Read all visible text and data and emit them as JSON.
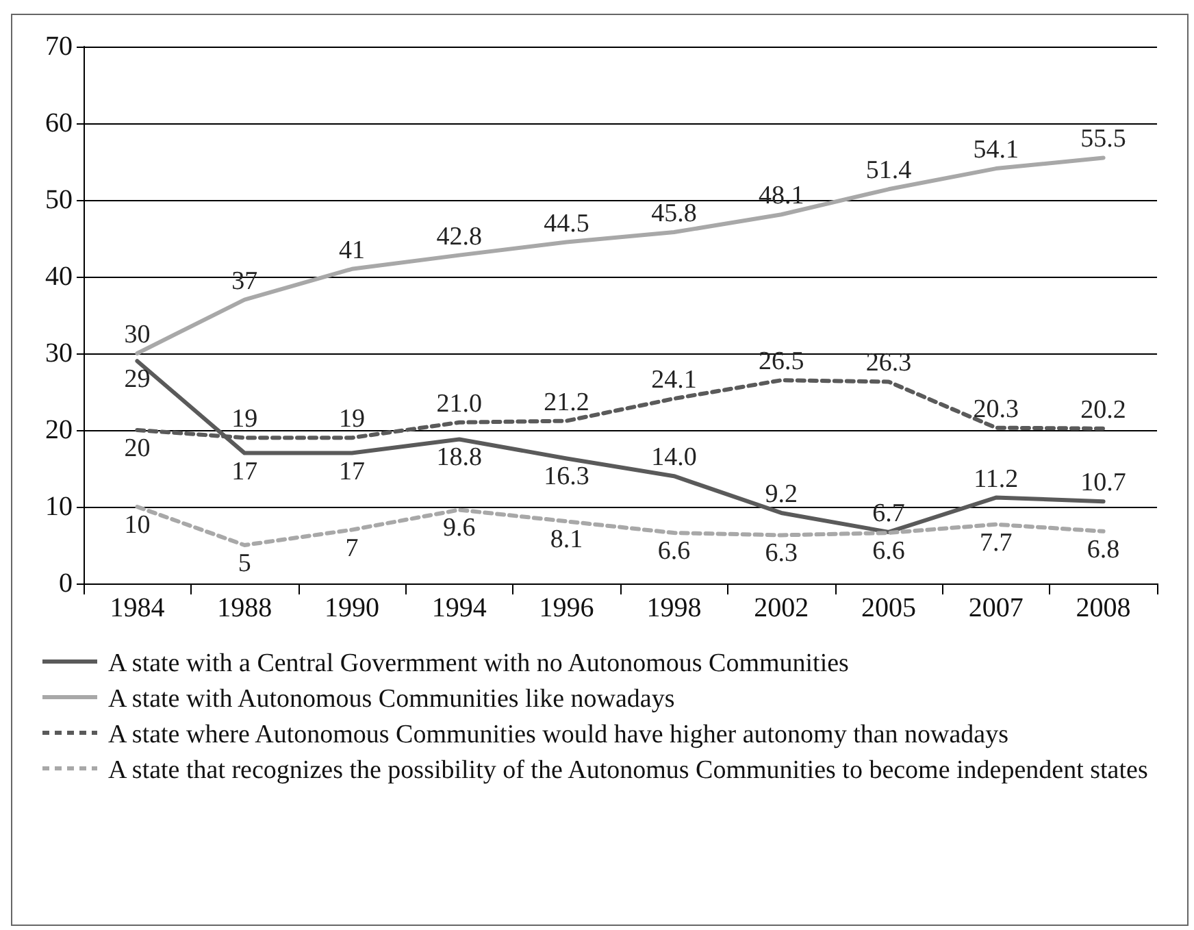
{
  "chart_data": {
    "type": "line",
    "categories": [
      "1984",
      "1988",
      "1990",
      "1994",
      "1996",
      "1998",
      "2002",
      "2005",
      "2007",
      "2008"
    ],
    "ylim": [
      0,
      70
    ],
    "yticks": [
      0,
      10,
      20,
      30,
      40,
      50,
      60,
      70
    ],
    "grid": "y",
    "legend": "bottom",
    "marker": "none",
    "data_labels": true,
    "series": [
      {
        "name": "A state with a Central Govermment with no Autonomous Communities",
        "color": "#5a5a5a",
        "line_style": "solid",
        "values": [
          29,
          17,
          17,
          18.8,
          16.3,
          14.0,
          9.2,
          6.7,
          11.2,
          10.7
        ],
        "value_labels": [
          "29",
          "17",
          "17",
          "18.8",
          "16.3",
          "14.0",
          "9.2",
          "6.7",
          "11.2",
          "10.7"
        ]
      },
      {
        "name": "A state with Autonomous Communities like nowadays",
        "color": "#a8a8a8",
        "line_style": "solid",
        "values": [
          30,
          37,
          41,
          42.8,
          44.5,
          45.8,
          48.1,
          51.4,
          54.1,
          55.5
        ],
        "value_labels": [
          "30",
          "37",
          "41",
          "42.8",
          "44.5",
          "45.8",
          "48.1",
          "51.4",
          "54.1",
          "55.5"
        ]
      },
      {
        "name": "A state where Autonomous Communities would have higher autonomy than nowadays",
        "color": "#5a5a5a",
        "line_style": "dashed",
        "values": [
          20,
          19,
          19,
          21.0,
          21.2,
          24.1,
          26.5,
          26.3,
          20.3,
          20.2
        ],
        "value_labels": [
          "20",
          "19",
          "19",
          "21.0",
          "21.2",
          "24.1",
          "26.5",
          "26.3",
          "20.3",
          "20.2"
        ]
      },
      {
        "name": "A state that recognizes the possibility of the Autonomus Communities to become independent states",
        "color": "#a8a8a8",
        "line_style": "dashed",
        "values": [
          10,
          5,
          7,
          9.6,
          8.1,
          6.6,
          6.3,
          6.6,
          7.7,
          6.8
        ],
        "value_labels": [
          "10",
          "5",
          "7",
          "9.6",
          "8.1",
          "6.6",
          "6.3",
          "6.6",
          "7.7",
          "6.8"
        ]
      }
    ]
  }
}
